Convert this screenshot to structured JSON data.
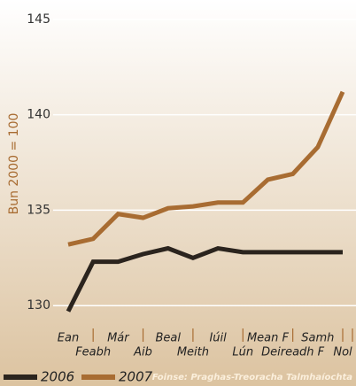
{
  "chart_data": {
    "type": "line",
    "y_label": "Bun 2000 = 100",
    "source": "Foinse: Praghas-Treoracha Talmhaíochta",
    "categories": [
      "Ean",
      "Feabh",
      "Már",
      "Aib",
      "Beal",
      "Meith",
      "Iúil",
      "Lún",
      "Mean F",
      "Deireadh F",
      "Samh",
      "Nol"
    ],
    "series": [
      {
        "name": "2006",
        "color": "#2b241e",
        "values": [
          129.7,
          132.3,
          132.3,
          132.7,
          133.0,
          132.5,
          133.0,
          132.8,
          132.8,
          132.8,
          132.8,
          132.8
        ]
      },
      {
        "name": "2007",
        "color": "#a86c32",
        "values": [
          133.2,
          133.5,
          134.8,
          134.6,
          135.1,
          135.2,
          135.4,
          135.4,
          136.6,
          136.9,
          138.3,
          141.2
        ]
      }
    ],
    "ylim": [
      129.5,
      145.5
    ],
    "yticks": [
      130,
      135,
      140,
      145
    ],
    "grid": true
  }
}
